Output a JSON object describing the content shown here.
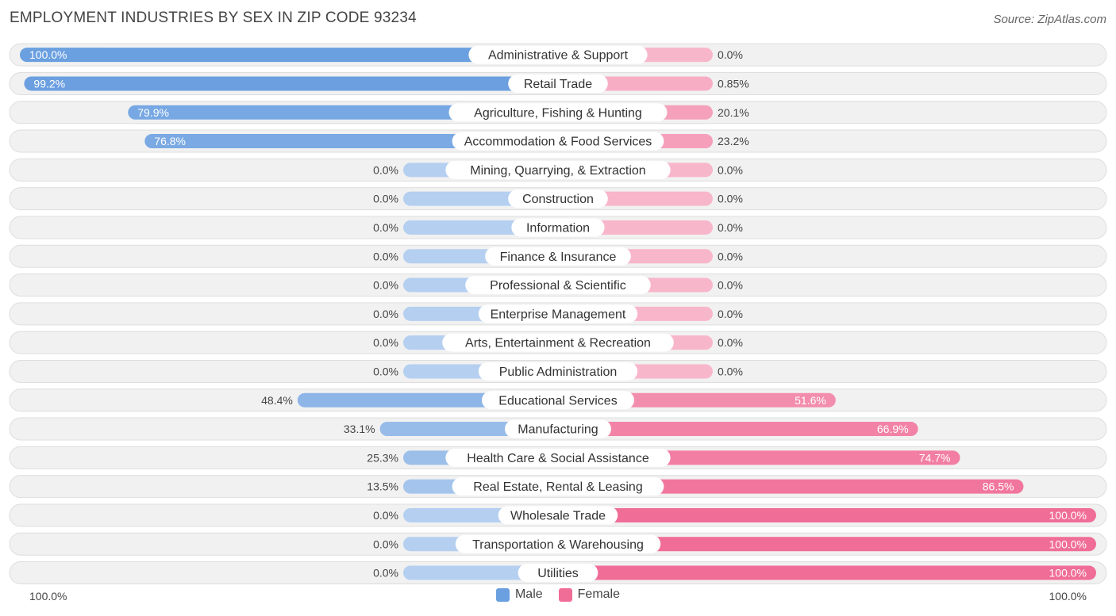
{
  "chart_data": {
    "type": "bar",
    "orientation": "horizontal-diverging",
    "title": "EMPLOYMENT INDUSTRIES BY SEX IN ZIP CODE 93234",
    "source": "Source: ZipAtlas.com",
    "axis_left_label": "100.0%",
    "axis_right_label": "100.0%",
    "xlim": [
      0,
      100
    ],
    "legend": {
      "placement": "bottom-center",
      "male": {
        "label": "Male",
        "color": "#6a9fe0"
      },
      "female": {
        "label": "Female",
        "color": "#f06d97"
      }
    },
    "categories": [
      "Administrative & Support",
      "Retail Trade",
      "Agriculture, Fishing & Hunting",
      "Accommodation & Food Services",
      "Mining, Quarrying, & Extraction",
      "Construction",
      "Information",
      "Finance & Insurance",
      "Professional & Scientific",
      "Enterprise Management",
      "Arts, Entertainment & Recreation",
      "Public Administration",
      "Educational Services",
      "Manufacturing",
      "Health Care & Social Assistance",
      "Real Estate, Rental & Leasing",
      "Wholesale Trade",
      "Transportation & Warehousing",
      "Utilities"
    ],
    "series": [
      {
        "name": "Male",
        "values": [
          100.0,
          99.2,
          79.9,
          76.8,
          0.0,
          0.0,
          0.0,
          0.0,
          0.0,
          0.0,
          0.0,
          0.0,
          48.4,
          33.1,
          25.3,
          13.5,
          0.0,
          0.0,
          0.0
        ],
        "labels": [
          "100.0%",
          "99.2%",
          "79.9%",
          "76.8%",
          "0.0%",
          "0.0%",
          "0.0%",
          "0.0%",
          "0.0%",
          "0.0%",
          "0.0%",
          "0.0%",
          "48.4%",
          "33.1%",
          "25.3%",
          "13.5%",
          "0.0%",
          "0.0%",
          "0.0%"
        ]
      },
      {
        "name": "Female",
        "values": [
          0.0,
          0.85,
          20.1,
          23.2,
          0.0,
          0.0,
          0.0,
          0.0,
          0.0,
          0.0,
          0.0,
          0.0,
          51.6,
          66.9,
          74.7,
          86.5,
          100.0,
          100.0,
          100.0
        ],
        "labels": [
          "0.0%",
          "0.85%",
          "20.1%",
          "23.2%",
          "0.0%",
          "0.0%",
          "0.0%",
          "0.0%",
          "0.0%",
          "0.0%",
          "0.0%",
          "0.0%",
          "51.6%",
          "66.9%",
          "74.7%",
          "86.5%",
          "100.0%",
          "100.0%",
          "100.0%"
        ]
      }
    ]
  }
}
